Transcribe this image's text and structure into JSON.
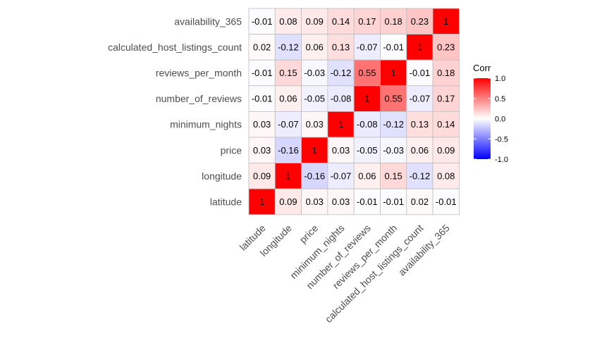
{
  "chart_data": {
    "type": "heatmap",
    "x_categories": [
      "latitude",
      "longitude",
      "price",
      "minimum_nights",
      "number_of_reviews",
      "reviews_per_month",
      "calculated_host_listings_count",
      "availability_365"
    ],
    "y_categories": [
      "availability_365",
      "calculated_host_listings_count",
      "reviews_per_month",
      "number_of_reviews",
      "minimum_nights",
      "price",
      "longitude",
      "latitude"
    ],
    "values": [
      [
        -0.01,
        0.08,
        0.09,
        0.14,
        0.17,
        0.18,
        0.23,
        1
      ],
      [
        0.02,
        -0.12,
        0.06,
        0.13,
        -0.07,
        -0.01,
        1,
        0.23
      ],
      [
        -0.01,
        0.15,
        -0.03,
        -0.12,
        0.55,
        1,
        -0.01,
        0.18
      ],
      [
        -0.01,
        0.06,
        -0.05,
        -0.08,
        1,
        0.55,
        -0.07,
        0.17
      ],
      [
        0.03,
        -0.07,
        0.03,
        1,
        -0.08,
        -0.12,
        0.13,
        0.14
      ],
      [
        0.03,
        -0.16,
        1,
        0.03,
        -0.05,
        -0.03,
        0.06,
        0.09
      ],
      [
        0.09,
        1,
        -0.16,
        -0.07,
        0.06,
        0.15,
        -0.12,
        0.08
      ],
      [
        1,
        0.09,
        0.03,
        0.03,
        -0.01,
        -0.01,
        0.02,
        -0.01
      ]
    ],
    "labels": [
      [
        "-0.01",
        "0.08",
        "0.09",
        "0.14",
        "0.17",
        "0.18",
        "0.23",
        "1"
      ],
      [
        "0.02",
        "-0.12",
        "0.06",
        "0.13",
        "-0.07",
        "-0.01",
        "1",
        "0.23"
      ],
      [
        "-0.01",
        "0.15",
        "-0.03",
        "-0.12",
        "0.55",
        "1",
        "-0.01",
        "0.18"
      ],
      [
        "-0.01",
        "0.06",
        "-0.05",
        "-0.08",
        "1",
        "0.55",
        "-0.07",
        "0.17"
      ],
      [
        "0.03",
        "-0.07",
        "0.03",
        "1",
        "-0.08",
        "-0.12",
        "0.13",
        "0.14"
      ],
      [
        "0.03",
        "-0.16",
        "1",
        "0.03",
        "-0.05",
        "-0.03",
        "0.06",
        "0.09"
      ],
      [
        "0.09",
        "1",
        "-0.16",
        "-0.07",
        "0.06",
        "0.15",
        "-0.12",
        "0.08"
      ],
      [
        "1",
        "0.09",
        "0.03",
        "0.03",
        "-0.01",
        "-0.01",
        "0.02",
        "-0.01"
      ]
    ],
    "colorscale": {
      "low": "#0000ff",
      "mid": "#ffffff",
      "high": "#ff0000",
      "domain": [
        -1,
        1
      ]
    },
    "legend": {
      "title": "Corr",
      "ticks": [
        1.0,
        0.5,
        0.0,
        -0.5,
        -1.0
      ],
      "tick_labels": [
        "1.0",
        "0.5",
        "0.0",
        "-0.5",
        "-1.0"
      ],
      "placement": "right"
    },
    "grid_color": "#bdbdbd",
    "xlabel": "",
    "ylabel": ""
  }
}
